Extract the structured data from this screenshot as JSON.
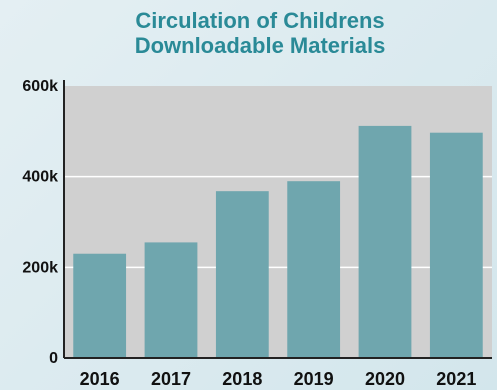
{
  "chart_data": {
    "type": "bar",
    "title_lines": [
      "Circulation of Childrens",
      "Downloadable Materials"
    ],
    "categories": [
      "2016",
      "2017",
      "2018",
      "2019",
      "2020",
      "2021"
    ],
    "values": [
      230000,
      255000,
      368000,
      390000,
      512000,
      497000
    ],
    "ylim": [
      0,
      600000
    ],
    "yticks": [
      0,
      200000,
      400000,
      600000
    ],
    "ytick_labels": [
      "0",
      "200k",
      "400k",
      "600k"
    ],
    "grid": true,
    "xlabel": "",
    "ylabel": "",
    "colors": {
      "bar": "#6fa6ae",
      "plot_bg": "#d0d0d0",
      "grid": "#ffffff",
      "axis": "#222222",
      "title": "#2a8a97"
    }
  }
}
